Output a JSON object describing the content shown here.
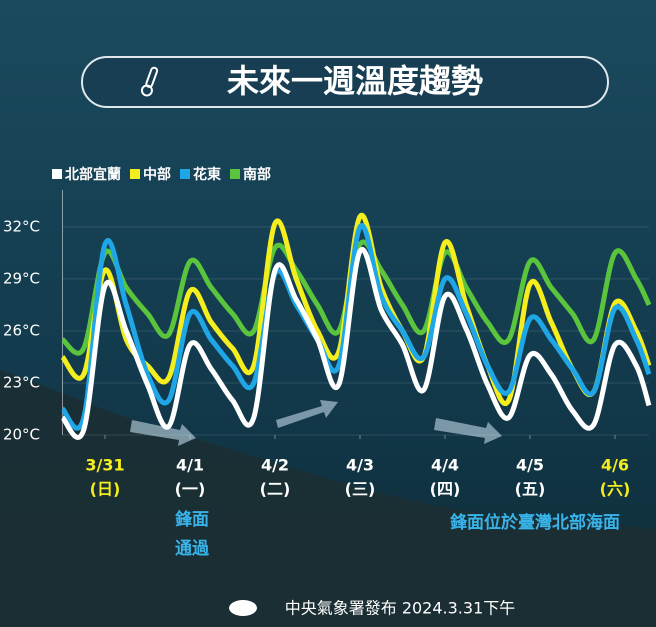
{
  "chart_data": {
    "type": "line",
    "title": "未來一週溫度趨勢",
    "footer": "中央氣象署發布 2024.3.31下午",
    "annotations": [
      "鋒面",
      "通過",
      "鋒面位於臺灣北部海面"
    ],
    "x": [
      -0.5,
      -0.25,
      0,
      0.25,
      0.5,
      0.75,
      1,
      1.25,
      1.5,
      1.75,
      2,
      2.25,
      2.5,
      2.75,
      3,
      3.25,
      3.5,
      3.75,
      4,
      4.25,
      4.5,
      4.75,
      5,
      5.25,
      5.5,
      5.75,
      6,
      6.25,
      6.4
    ],
    "xlim": [
      -0.5,
      6.4
    ],
    "xticks": [
      {
        "value": 0,
        "label": "3/31"
      },
      {
        "value": 1,
        "label": "4/1"
      },
      {
        "value": 2,
        "label": "4/2"
      },
      {
        "value": 3,
        "label": "4/3"
      },
      {
        "value": 4,
        "label": "4/4"
      },
      {
        "value": 5,
        "label": "4/5"
      },
      {
        "value": 6,
        "label": "4/6"
      }
    ],
    "xtick_sublabels": [
      "(日)",
      "(一)",
      "(二)",
      "(三)",
      "(四)",
      "(五)",
      "(六)"
    ],
    "ylim": [
      20,
      32.8
    ],
    "yticks": [
      {
        "value": 20,
        "label": "20°C"
      },
      {
        "value": 23,
        "label": "23°C"
      },
      {
        "value": 26,
        "label": "26°C"
      },
      {
        "value": 29,
        "label": "29°C"
      },
      {
        "value": 32,
        "label": "32°C"
      }
    ],
    "grid": true,
    "series": [
      {
        "name": "南部",
        "color": "#5ac43c",
        "values": [
          25.5,
          25.0,
          30.5,
          28.5,
          27.0,
          25.8,
          30.0,
          28.5,
          27.0,
          26.0,
          30.8,
          29.5,
          27.5,
          26.0,
          31.0,
          29.5,
          27.5,
          26.0,
          30.5,
          28.5,
          26.5,
          25.5,
          30.0,
          28.5,
          27.0,
          25.5,
          30.5,
          29.0,
          27.5
        ]
      },
      {
        "name": "中部",
        "color": "#f5ee1e",
        "values": [
          24.5,
          23.5,
          29.5,
          25.5,
          24.0,
          23.3,
          28.3,
          26.5,
          25.0,
          24.0,
          32.2,
          29.0,
          26.0,
          24.8,
          32.6,
          28.5,
          26.0,
          24.5,
          31.1,
          27.5,
          24.0,
          22.0,
          28.7,
          26.5,
          23.8,
          22.5,
          27.6,
          26.0,
          24.0
        ]
      },
      {
        "name": "花東",
        "color": "#1ea6e6",
        "values": [
          21.5,
          21.0,
          31.0,
          27.5,
          23.5,
          22.0,
          27.0,
          25.5,
          24.0,
          23.0,
          29.3,
          27.5,
          25.5,
          24.0,
          32.0,
          28.0,
          26.0,
          24.5,
          29.0,
          27.0,
          24.0,
          22.5,
          26.7,
          25.5,
          23.8,
          22.5,
          27.3,
          25.5,
          23.5
        ]
      },
      {
        "name": "北部宜蘭",
        "color": "#ffffff",
        "values": [
          21.0,
          20.3,
          28.6,
          26.0,
          22.9,
          20.5,
          25.2,
          23.8,
          22.0,
          21.0,
          29.5,
          27.8,
          25.5,
          22.9,
          30.6,
          27.2,
          25.2,
          22.6,
          28.0,
          26.1,
          22.9,
          21.0,
          24.6,
          23.5,
          21.4,
          20.6,
          25.2,
          24.0,
          21.7
        ]
      }
    ],
    "legend_order": [
      3,
      1,
      2,
      0
    ]
  }
}
